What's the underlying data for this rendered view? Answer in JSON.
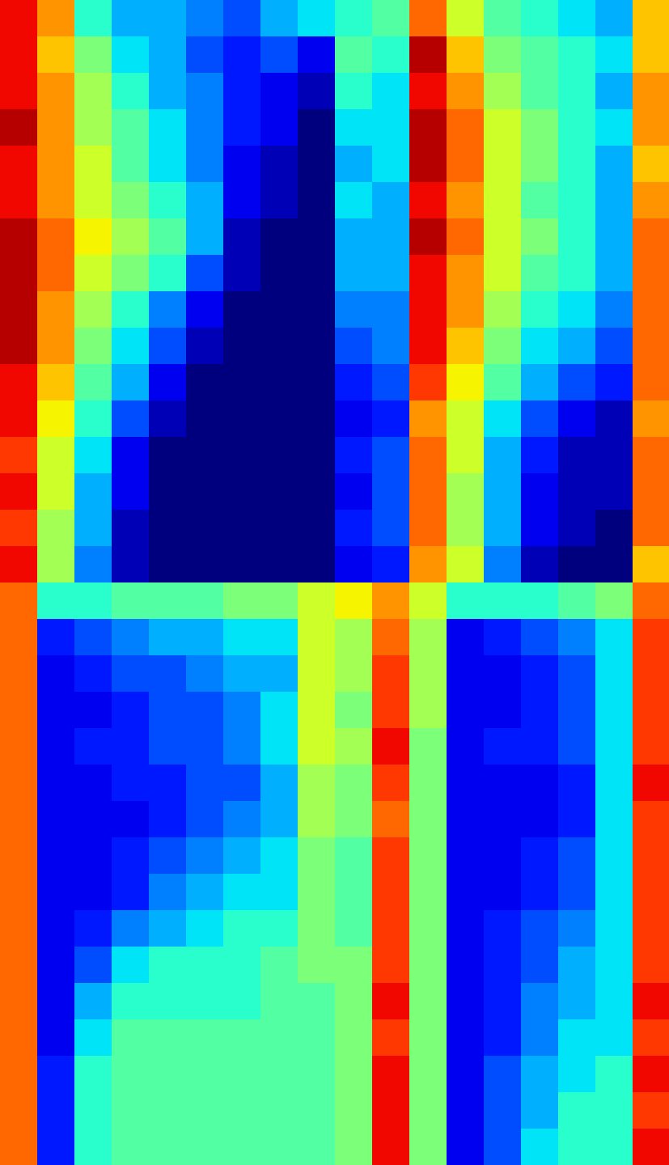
{
  "chart_data": {
    "type": "heatmap",
    "color": "jet",
    "tick_labels": false,
    "value_range": [
      0,
      1
    ],
    "cells": [
      [
        0.9,
        0.75,
        0.4,
        0.3,
        0.3,
        0.25,
        0.2,
        0.3,
        0.35,
        0.4,
        0.45,
        0.8,
        0.6,
        0.45,
        0.4,
        0.35,
        0.3,
        0.7
      ],
      [
        0.9,
        0.7,
        0.5,
        0.35,
        0.3,
        0.2,
        0.15,
        0.2,
        0.1,
        0.45,
        0.4,
        0.95,
        0.7,
        0.5,
        0.45,
        0.4,
        0.35,
        0.7
      ],
      [
        0.9,
        0.75,
        0.55,
        0.4,
        0.3,
        0.25,
        0.15,
        0.1,
        0.05,
        0.4,
        0.35,
        0.9,
        0.75,
        0.55,
        0.45,
        0.4,
        0.3,
        0.75
      ],
      [
        0.95,
        0.75,
        0.55,
        0.45,
        0.35,
        0.25,
        0.15,
        0.1,
        0.0,
        0.35,
        0.35,
        0.95,
        0.8,
        0.6,
        0.5,
        0.4,
        0.35,
        0.75
      ],
      [
        0.9,
        0.75,
        0.6,
        0.45,
        0.35,
        0.25,
        0.1,
        0.05,
        0.0,
        0.3,
        0.35,
        0.95,
        0.8,
        0.6,
        0.5,
        0.4,
        0.3,
        0.7
      ],
      [
        0.9,
        0.75,
        0.6,
        0.5,
        0.4,
        0.3,
        0.1,
        0.05,
        0.0,
        0.35,
        0.3,
        0.9,
        0.75,
        0.6,
        0.45,
        0.4,
        0.3,
        0.75
      ],
      [
        0.95,
        0.8,
        0.65,
        0.55,
        0.45,
        0.3,
        0.05,
        0.0,
        0.0,
        0.3,
        0.3,
        0.95,
        0.8,
        0.6,
        0.5,
        0.4,
        0.3,
        0.8
      ],
      [
        0.95,
        0.8,
        0.6,
        0.5,
        0.4,
        0.2,
        0.05,
        0.0,
        0.0,
        0.3,
        0.3,
        0.9,
        0.75,
        0.6,
        0.45,
        0.4,
        0.3,
        0.8
      ],
      [
        0.95,
        0.75,
        0.55,
        0.4,
        0.25,
        0.1,
        0.0,
        0.0,
        0.0,
        0.25,
        0.25,
        0.9,
        0.75,
        0.55,
        0.4,
        0.35,
        0.25,
        0.8
      ],
      [
        0.95,
        0.75,
        0.5,
        0.35,
        0.2,
        0.05,
        0.0,
        0.0,
        0.0,
        0.2,
        0.25,
        0.9,
        0.7,
        0.5,
        0.35,
        0.3,
        0.2,
        0.8
      ],
      [
        0.9,
        0.7,
        0.45,
        0.3,
        0.1,
        0.0,
        0.0,
        0.0,
        0.0,
        0.15,
        0.2,
        0.85,
        0.65,
        0.45,
        0.3,
        0.2,
        0.15,
        0.8
      ],
      [
        0.9,
        0.65,
        0.4,
        0.2,
        0.05,
        0.0,
        0.0,
        0.0,
        0.0,
        0.1,
        0.15,
        0.75,
        0.6,
        0.35,
        0.2,
        0.1,
        0.05,
        0.75
      ],
      [
        0.85,
        0.6,
        0.35,
        0.1,
        0.0,
        0.0,
        0.0,
        0.0,
        0.0,
        0.15,
        0.2,
        0.8,
        0.6,
        0.3,
        0.15,
        0.05,
        0.05,
        0.8
      ],
      [
        0.9,
        0.6,
        0.3,
        0.1,
        0.0,
        0.0,
        0.0,
        0.0,
        0.0,
        0.1,
        0.2,
        0.8,
        0.55,
        0.3,
        0.1,
        0.05,
        0.05,
        0.8
      ],
      [
        0.85,
        0.55,
        0.3,
        0.05,
        0.0,
        0.0,
        0.0,
        0.0,
        0.0,
        0.15,
        0.2,
        0.8,
        0.55,
        0.3,
        0.1,
        0.05,
        0.0,
        0.8
      ],
      [
        0.9,
        0.55,
        0.25,
        0.05,
        0.0,
        0.0,
        0.0,
        0.0,
        0.0,
        0.1,
        0.15,
        0.75,
        0.6,
        0.25,
        0.05,
        0.0,
        0.0,
        0.7
      ],
      [
        0.8,
        0.4,
        0.4,
        0.45,
        0.45,
        0.45,
        0.5,
        0.5,
        0.6,
        0.65,
        0.75,
        0.6,
        0.4,
        0.4,
        0.4,
        0.45,
        0.5,
        0.8
      ],
      [
        0.8,
        0.15,
        0.2,
        0.25,
        0.3,
        0.3,
        0.35,
        0.35,
        0.6,
        0.55,
        0.8,
        0.55,
        0.1,
        0.15,
        0.2,
        0.25,
        0.35,
        0.85
      ],
      [
        0.8,
        0.1,
        0.15,
        0.2,
        0.2,
        0.25,
        0.3,
        0.3,
        0.6,
        0.55,
        0.85,
        0.55,
        0.1,
        0.1,
        0.15,
        0.2,
        0.35,
        0.85
      ],
      [
        0.8,
        0.1,
        0.1,
        0.15,
        0.2,
        0.2,
        0.25,
        0.35,
        0.6,
        0.5,
        0.85,
        0.55,
        0.1,
        0.1,
        0.15,
        0.2,
        0.35,
        0.85
      ],
      [
        0.8,
        0.1,
        0.15,
        0.15,
        0.2,
        0.2,
        0.25,
        0.35,
        0.6,
        0.55,
        0.9,
        0.5,
        0.1,
        0.15,
        0.15,
        0.2,
        0.35,
        0.85
      ],
      [
        0.8,
        0.1,
        0.1,
        0.15,
        0.15,
        0.2,
        0.2,
        0.3,
        0.55,
        0.5,
        0.85,
        0.5,
        0.1,
        0.1,
        0.1,
        0.15,
        0.35,
        0.9
      ],
      [
        0.8,
        0.1,
        0.1,
        0.1,
        0.15,
        0.2,
        0.25,
        0.3,
        0.55,
        0.5,
        0.8,
        0.5,
        0.1,
        0.1,
        0.1,
        0.15,
        0.35,
        0.85
      ],
      [
        0.8,
        0.1,
        0.1,
        0.15,
        0.2,
        0.25,
        0.3,
        0.35,
        0.5,
        0.45,
        0.85,
        0.5,
        0.1,
        0.1,
        0.15,
        0.2,
        0.35,
        0.85
      ],
      [
        0.8,
        0.1,
        0.1,
        0.15,
        0.25,
        0.3,
        0.35,
        0.35,
        0.5,
        0.45,
        0.85,
        0.5,
        0.1,
        0.1,
        0.15,
        0.2,
        0.35,
        0.85
      ],
      [
        0.8,
        0.1,
        0.15,
        0.25,
        0.3,
        0.35,
        0.4,
        0.4,
        0.5,
        0.45,
        0.85,
        0.5,
        0.1,
        0.15,
        0.2,
        0.25,
        0.35,
        0.85
      ],
      [
        0.8,
        0.1,
        0.2,
        0.35,
        0.4,
        0.4,
        0.4,
        0.45,
        0.5,
        0.5,
        0.85,
        0.5,
        0.1,
        0.15,
        0.2,
        0.3,
        0.35,
        0.85
      ],
      [
        0.8,
        0.1,
        0.3,
        0.4,
        0.4,
        0.4,
        0.4,
        0.45,
        0.45,
        0.5,
        0.9,
        0.5,
        0.1,
        0.15,
        0.25,
        0.3,
        0.35,
        0.9
      ],
      [
        0.8,
        0.1,
        0.35,
        0.45,
        0.45,
        0.45,
        0.45,
        0.45,
        0.45,
        0.5,
        0.85,
        0.5,
        0.1,
        0.15,
        0.25,
        0.35,
        0.35,
        0.85
      ],
      [
        0.8,
        0.15,
        0.4,
        0.45,
        0.45,
        0.45,
        0.45,
        0.45,
        0.45,
        0.5,
        0.9,
        0.5,
        0.1,
        0.2,
        0.3,
        0.35,
        0.4,
        0.9
      ],
      [
        0.8,
        0.15,
        0.4,
        0.45,
        0.45,
        0.45,
        0.45,
        0.45,
        0.45,
        0.5,
        0.9,
        0.5,
        0.1,
        0.2,
        0.3,
        0.4,
        0.4,
        0.85
      ],
      [
        0.8,
        0.15,
        0.4,
        0.45,
        0.45,
        0.45,
        0.45,
        0.45,
        0.45,
        0.5,
        0.9,
        0.5,
        0.1,
        0.2,
        0.35,
        0.4,
        0.4,
        0.9
      ]
    ]
  }
}
